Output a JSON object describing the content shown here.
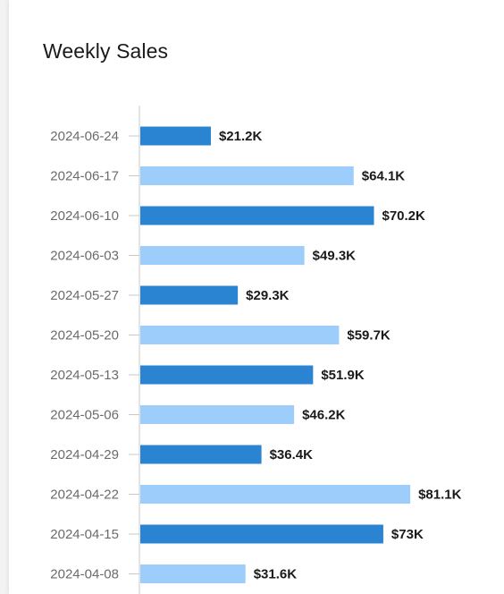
{
  "chart_data": {
    "type": "bar",
    "orientation": "horizontal",
    "title": "Weekly Sales",
    "categories": [
      "2024-06-24",
      "2024-06-17",
      "2024-06-10",
      "2024-06-03",
      "2024-05-27",
      "2024-05-20",
      "2024-05-13",
      "2024-05-06",
      "2024-04-29",
      "2024-04-22",
      "2024-04-15",
      "2024-04-08"
    ],
    "values": [
      21.2,
      64.1,
      70.2,
      49.3,
      29.3,
      59.7,
      51.9,
      46.2,
      36.4,
      81.1,
      73,
      31.6
    ],
    "value_unit": "thousand USD",
    "data_labels": [
      "$21.2K",
      "$64.1K",
      "$70.2K",
      "$49.3K",
      "$29.3K",
      "$59.7K",
      "$51.9K",
      "$46.2K",
      "$36.4K",
      "$81.1K",
      "$73K",
      "$31.6K"
    ],
    "xlim": [
      0,
      82
    ],
    "grid": false,
    "colors": {
      "dark": "#2a84d2",
      "light": "#9dcefb"
    },
    "color_pattern": [
      "dark",
      "light"
    ]
  }
}
